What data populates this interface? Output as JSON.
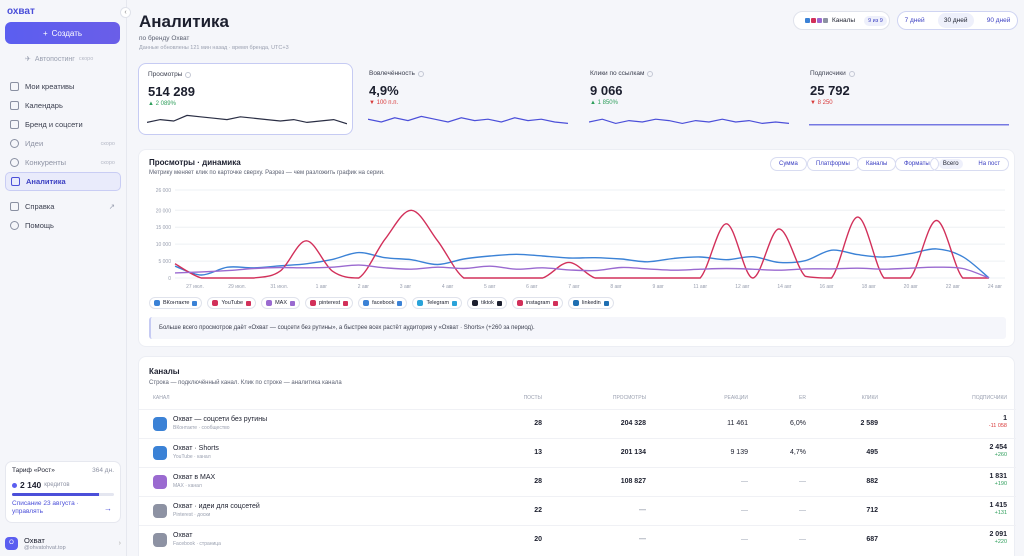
{
  "app": {
    "logo": "охват",
    "collapse_icon": "chevron-left"
  },
  "sidebar": {
    "create_label": "Создать",
    "autopost": {
      "label": "Автопостинг",
      "soon": "скоро"
    },
    "items": [
      {
        "label": "Мои креативы",
        "icon": "grid-icon"
      },
      {
        "label": "Календарь",
        "icon": "calendar-icon"
      },
      {
        "label": "Бренд и соцсети",
        "icon": "brand-icon"
      },
      {
        "label": "Идеи",
        "icon": "lightbulb-icon",
        "soon": "скоро"
      },
      {
        "label": "Конкуренты",
        "icon": "competitors-icon",
        "soon": "скоро"
      },
      {
        "label": "Аналитика",
        "icon": "analytics-icon",
        "active": true
      },
      {
        "label": "Справка",
        "icon": "help-book-icon"
      },
      {
        "label": "Помощь",
        "icon": "help-icon"
      }
    ],
    "tariff": {
      "name": "Тариф «Рост»",
      "days": "364 дн.",
      "credits": "2 140",
      "credits_label": "кредитов",
      "credits_fraction": 0.85,
      "renew": "Списание 23 августа · управлять"
    },
    "user": {
      "name": "Охват",
      "handle": "@ohvatohvat.top",
      "initial": "О"
    }
  },
  "header": {
    "title": "Аналитика",
    "subtitle": "по бренду Охват",
    "updated": "Данные обновлены 121 мин назад · время бренда, UTC+3",
    "channels_label": "Каналы",
    "channels_count": "9 из 9",
    "ranges": [
      "7 дней",
      "30 дней",
      "90 дней"
    ],
    "selected_range": "30 дней"
  },
  "kpis": [
    {
      "label": "Просмотры",
      "value": "514 289",
      "delta": "▲ 2 089%",
      "dir": "up",
      "spark": [
        4,
        6,
        5,
        9,
        8,
        7,
        6,
        8,
        7,
        6,
        5,
        6,
        4,
        5,
        6,
        3
      ],
      "color": "#2a2e44"
    },
    {
      "label": "Вовлечённость",
      "value": "4,9%",
      "delta": "▼ 100 п.п.",
      "dir": "down",
      "spark": [
        7,
        5,
        8,
        6,
        9,
        7,
        5,
        8,
        6,
        7,
        5,
        8,
        6,
        7,
        5,
        4
      ],
      "color": "#4b4fd9"
    },
    {
      "label": "Клики по ссылкам",
      "value": "9 066",
      "delta": "▲ 1 850%",
      "dir": "up",
      "spark": [
        5,
        7,
        4,
        6,
        5,
        7,
        6,
        4,
        6,
        5,
        7,
        5,
        6,
        4,
        5,
        4
      ],
      "color": "#4b4fd9"
    },
    {
      "label": "Подписчики",
      "value": "25 792",
      "delta": "▼ 8 250",
      "dir": "down",
      "spark": [
        3,
        3,
        3,
        3,
        3,
        3,
        3,
        3,
        3,
        3,
        3,
        3,
        3,
        3,
        3,
        3
      ],
      "color": "#4b4fd9"
    }
  ],
  "chart_panel": {
    "title": "Просмотры · динамика",
    "subtitle": "Метрику меняет клик по карточке сверху. Разрез — чем разложить график на серии.",
    "segments": [
      "Сумма",
      "Платформы",
      "Каналы",
      "Форматы"
    ],
    "modes": [
      "Всего",
      "На пост"
    ],
    "insight": "Больше всего просмотров даёт «Охват — соцсети без рутины», а быстрее всех растёт аудитория у «Охват · Shorts» (+260 за период)."
  },
  "chart_data": {
    "type": "line",
    "yticks": [
      0,
      5000,
      10000,
      15000,
      20000,
      26000
    ],
    "ytick_labels": [
      "0",
      "5 000",
      "10 000",
      "15 000",
      "20 000",
      "26 000"
    ],
    "xtick_labels": [
      "27 июл.",
      "29 июл.",
      "31 июл.",
      "1 авг",
      "2 авг",
      "3 авг",
      "4 авг",
      "5 авг",
      "6 авг",
      "7 авг",
      "8 авг",
      "9 авг",
      "11 авг",
      "12 авг",
      "14 авг",
      "16 авг",
      "18 авг",
      "20 авг",
      "22 авг",
      "24 авг"
    ],
    "ylim": [
      0,
      26000
    ],
    "series": [
      {
        "name": "ВКонтакте",
        "color": "#3b82d6",
        "values": [
          3500,
          900,
          3200,
          3000,
          3600,
          4200,
          5500,
          7500,
          6000,
          5400,
          4000,
          5600,
          6500,
          7000,
          6500,
          5900,
          6000,
          5600,
          4800,
          5800,
          6200,
          5400,
          6300,
          4600,
          5100,
          8200,
          6900,
          6200,
          7200,
          8600,
          6300,
          0
        ]
      },
      {
        "name": "YouTube",
        "color": "#d2305a",
        "values": [
          4200,
          0,
          0,
          0,
          2000,
          11000,
          2000,
          0,
          11500,
          20000,
          11000,
          0,
          0,
          0,
          0,
          4600,
          0,
          0,
          0,
          0,
          0,
          16000,
          0,
          14500,
          500,
          0,
          18000,
          0,
          0,
          17000,
          0,
          0
        ]
      },
      {
        "name": "MAX",
        "color": "#9a6ad0",
        "values": [
          1500,
          1800,
          2200,
          2800,
          3100,
          3000,
          3200,
          3800,
          3000,
          2600,
          3200,
          2800,
          3500,
          2600,
          3000,
          2400,
          2200,
          3100,
          2700,
          2300,
          2600,
          2800,
          2600,
          2300,
          2700,
          2700,
          2900,
          2600,
          2900,
          3200,
          2800,
          0
        ]
      }
    ],
    "legend": [
      {
        "name": "ВКонтакте",
        "color": "#3b82d6"
      },
      {
        "name": "YouTube",
        "color": "#d2305a"
      },
      {
        "name": "MAX",
        "color": "#9a6ad0"
      },
      {
        "name": "pinterest",
        "color": "#d2305a"
      },
      {
        "name": "facebook",
        "color": "#3b82d6"
      },
      {
        "name": "Telegram",
        "color": "#2aa3d9"
      },
      {
        "name": "tiktok",
        "color": "#1c1f2e"
      },
      {
        "name": "instagram",
        "color": "#d2305a"
      },
      {
        "name": "linkedin",
        "color": "#1f6fb2"
      }
    ]
  },
  "channels_table": {
    "title": "Каналы",
    "subtitle": "Строка — подключённый канал. Клик по строке — аналитика канала",
    "columns": [
      "Канал",
      "Посты",
      "Просмотры",
      "Реакции",
      "ER",
      "Клики",
      "Подписчики"
    ],
    "rows": [
      {
        "name": "Охват — соцсети без рутины",
        "type": "ВКонтакте · сообщество",
        "posts": "28",
        "views": "204 328",
        "reactions": "11 461",
        "er": "6,0%",
        "clicks": "2 589",
        "subs": "1",
        "subs_delta": "-11 058",
        "subs_dir": "down",
        "color": "#3b82d6"
      },
      {
        "name": "Охват · Shorts",
        "type": "YouTube · канал",
        "posts": "13",
        "views": "201 134",
        "reactions": "9 139",
        "er": "4,7%",
        "clicks": "495",
        "subs": "2 454",
        "subs_delta": "+260",
        "subs_dir": "up",
        "color": "#3b82d6"
      },
      {
        "name": "Охват в MAX",
        "type": "MAX · канал",
        "posts": "28",
        "views": "108 827",
        "reactions": "—",
        "er": "—",
        "clicks": "882",
        "subs": "1 831",
        "subs_delta": "+190",
        "subs_dir": "up",
        "color": "#9a6ad0"
      },
      {
        "name": "Охват · идеи для соцсетей",
        "type": "Pinterest · доски",
        "posts": "22",
        "views": "—",
        "reactions": "—",
        "er": "—",
        "clicks": "712",
        "subs": "1 415",
        "subs_delta": "+131",
        "subs_dir": "up",
        "color": "#8d92a3"
      },
      {
        "name": "Охват",
        "type": "Facebook · страница",
        "posts": "20",
        "views": "—",
        "reactions": "—",
        "er": "—",
        "clicks": "687",
        "subs": "2 091",
        "subs_delta": "+220",
        "subs_dir": "up",
        "color": "#8d92a3"
      }
    ]
  }
}
